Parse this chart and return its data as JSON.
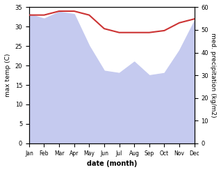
{
  "months": [
    "Jan",
    "Feb",
    "Mar",
    "Apr",
    "May",
    "Jun",
    "Jul",
    "Aug",
    "Sep",
    "Oct",
    "Nov",
    "Dec"
  ],
  "max_temp": [
    33,
    33,
    34,
    34,
    33,
    29.5,
    28.5,
    28.5,
    28.5,
    29,
    31,
    32
  ],
  "precipitation": [
    57,
    55,
    58,
    57,
    43,
    32,
    31,
    36,
    30,
    31,
    41,
    54
  ],
  "temp_ylim": [
    0,
    35
  ],
  "precip_ylim": [
    0,
    60
  ],
  "temp_color": "#cc3333",
  "precip_fill_color": "#c5caef",
  "xlabel": "date (month)",
  "ylabel_left": "max temp (C)",
  "ylabel_right": "med. precipitation (kg/m2)",
  "temp_yticks": [
    0,
    5,
    10,
    15,
    20,
    25,
    30,
    35
  ],
  "precip_yticks": [
    0,
    10,
    20,
    30,
    40,
    50,
    60
  ],
  "background_color": "#ffffff"
}
